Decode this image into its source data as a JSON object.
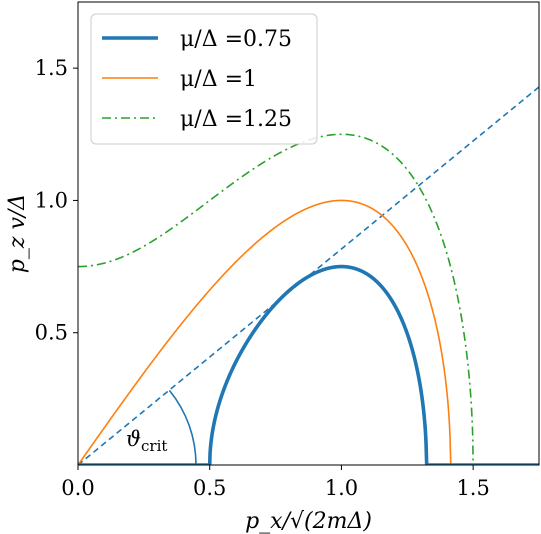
{
  "chart_data": {
    "type": "line",
    "xlabel": "p_x/√(2mΔ)",
    "ylabel": "p_z v/Δ",
    "xlim": [
      0,
      1.75
    ],
    "ylim": [
      0,
      1.75
    ],
    "xticks": [
      {
        "value": 0.0,
        "label": "0.0"
      },
      {
        "value": 0.5,
        "label": "0.5"
      },
      {
        "value": 1.0,
        "label": "1.0"
      },
      {
        "value": 1.5,
        "label": "1.5"
      }
    ],
    "yticks": [
      {
        "value": 0.5,
        "label": "0.5"
      },
      {
        "value": 1.0,
        "label": "1.0"
      },
      {
        "value": 1.5,
        "label": "1.5"
      }
    ],
    "grid": false,
    "legend_position": "top-left",
    "series": [
      {
        "name": "μ/Δ =0.75",
        "mu": 0.75,
        "color": "#1f77b4",
        "style": "solid-thick"
      },
      {
        "name": "μ/Δ =1",
        "mu": 1.0,
        "color": "#ff7f0e",
        "style": "solid"
      },
      {
        "name": "μ/Δ =1.25",
        "mu": 1.25,
        "color": "#2ca02c",
        "style": "dashdot"
      }
    ],
    "reference_line": {
      "slope": 0.8165,
      "color": "#1f77b4",
      "style": "dashed"
    },
    "annotation": {
      "text": "ϑ",
      "subscript": "crit",
      "color": "#1f77b4"
    }
  }
}
